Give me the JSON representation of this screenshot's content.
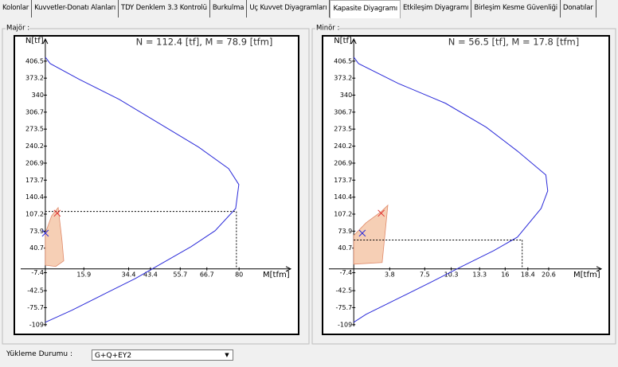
{
  "tabs": [
    "Kolonlar",
    "Kuvvetler-Donatı Alanları",
    "TDY Denklem 3.3 Kontrolü",
    "Burkulma",
    "Uç Kuvvet Diyagramları",
    "Kapasite Diyagramı",
    "Etkileşim Diyagramı",
    "Birleşim Kesme Güvenliği",
    "Donatılar"
  ],
  "selected_tab": 5,
  "chart_data": [
    {
      "type": "line",
      "title": "Majör :",
      "annotation": "N = 112.4 [tf], M = 78.9 [tfm]",
      "x_label": "M[tfm]",
      "y_label": "N[tf]",
      "xlim": [
        -12.8,
        104.6
      ],
      "ylim": [
        -128,
        456
      ],
      "xticks": [
        15.9,
        34.4,
        43.4,
        55.7,
        66.7,
        80
      ],
      "yticks": [
        406.5,
        373.2,
        340,
        306.7,
        273.5,
        240.2,
        206.9,
        173.7,
        140.4,
        107.2,
        73.9,
        40.7,
        -7.4,
        -42.5,
        -75.7,
        -109
      ],
      "series": [
        {
          "color": "#2b2bd9",
          "x": [
            0,
            2.0,
            14.1,
            30.5,
            46.9,
            63.3,
            75.7,
            79.9,
            78.6,
            70.1,
            60.2,
            48.7,
            37.2,
            24.0,
            10.9,
            0
          ],
          "values": [
            414.3,
            401.8,
            370.7,
            331.7,
            285.0,
            238.3,
            196.2,
            165.1,
            118.3,
            74.7,
            43.6,
            12.4,
            -18.7,
            -49.9,
            -81.0,
            -104.4
          ]
        }
      ],
      "region": {
        "color": "#f6cfb5",
        "x": [
          0,
          0,
          2.6,
          5.3,
          6.9,
          7.6,
          4.3
        ],
        "values": [
          7.4,
          70,
          104,
          120,
          54.6,
          15.7,
          4.8
        ]
      },
      "markers": [
        {
          "color": "#e03030",
          "x": 4.9,
          "y": 109
        },
        {
          "color": "#2b2bd9",
          "x": 0,
          "y": 70
        }
      ],
      "design_point": {
        "M": 78.9,
        "N": 112.4
      }
    },
    {
      "type": "line",
      "title": "Minör :",
      "annotation": "N = 56.5 [tf], M = 17.8 [tfm]",
      "x_label": "M[tfm]",
      "y_label": "N[tf]",
      "xlim": [
        -3.3,
        27.0
      ],
      "ylim": [
        -128,
        456
      ],
      "xticks": [
        3.8,
        7.5,
        10.3,
        13.3,
        16,
        18.4,
        20.6
      ],
      "yticks": [
        406.5,
        373.2,
        340,
        306.7,
        273.5,
        240.2,
        206.9,
        173.7,
        140.4,
        107.2,
        73.9,
        40.7,
        -7.4,
        -42.5,
        -75.7,
        -109
      ],
      "series": [
        {
          "color": "#2b2bd9",
          "x": [
            0,
            0.5,
            4.7,
            9.7,
            14.0,
            17.3,
            20.3,
            20.5,
            19.8,
            17.3,
            14.8,
            11.4,
            8.1,
            4.7,
            1.3,
            0
          ],
          "values": [
            414.3,
            401.8,
            362.9,
            324.0,
            277.2,
            230.5,
            183.8,
            152.6,
            118.3,
            62.3,
            35.8,
            4.6,
            -26.5,
            -57.7,
            -88.8,
            -104.4
          ]
        }
      ],
      "region": {
        "color": "#f6cfb5",
        "x": [
          0,
          1.3,
          2.9,
          3.6,
          3.0,
          0
        ],
        "values": [
          65.4,
          90.3,
          112.1,
          124.6,
          12.5,
          9.4
        ]
      },
      "markers": [
        {
          "color": "#e03030",
          "x": 2.9,
          "y": 109
        },
        {
          "color": "#2b2bd9",
          "x": 0.9,
          "y": 70
        }
      ],
      "design_point": {
        "M": 17.8,
        "N": 56.5
      }
    }
  ],
  "footer": {
    "label": "Yükleme Durumu :",
    "selection": "G+Q+EY2"
  }
}
